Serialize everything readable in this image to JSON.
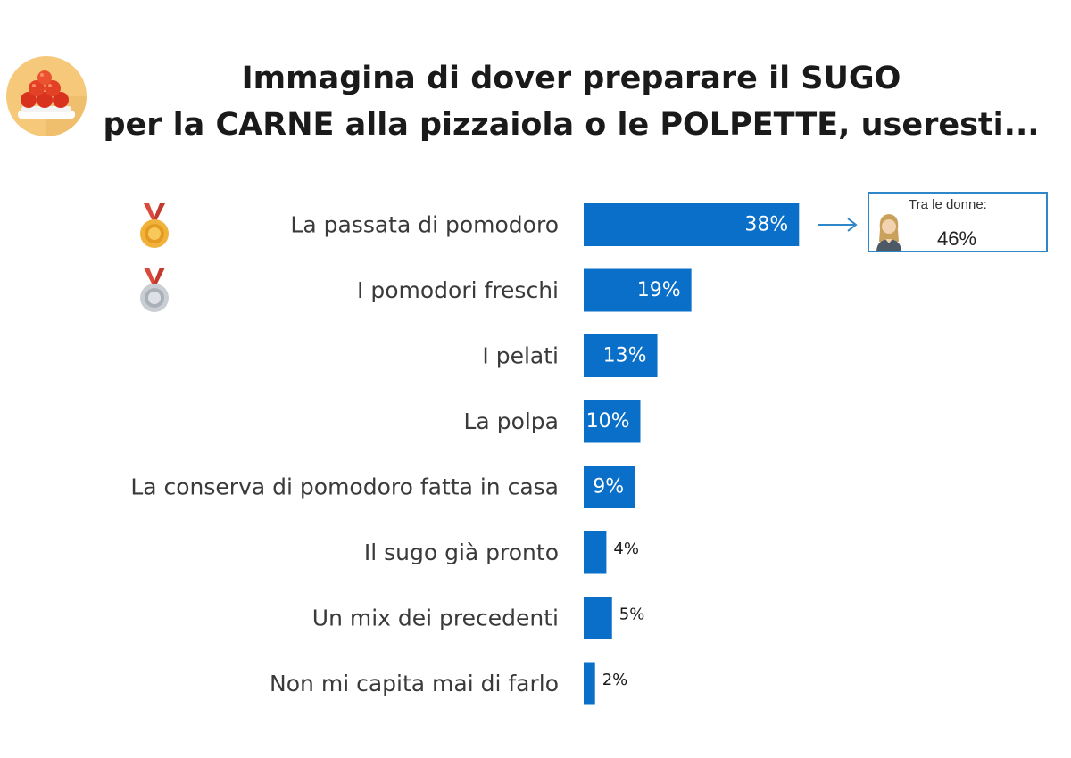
{
  "title_line1": "Immagina di dover preparare il SUGO",
  "title_line2": "per la CARNE alla pizzaiola o le POLPETTE, useresti...",
  "icons": {
    "header": "meatballs-dish-icon",
    "first": "gold-medal-icon",
    "second": "silver-medal-icon",
    "callout": "woman-avatar-icon"
  },
  "colors": {
    "bar": "#0a6fc9",
    "callout_border": "#2f86c9",
    "arrow": "#2f86c9"
  },
  "callout": {
    "title": "Tra le donne:",
    "value": "46%"
  },
  "chart_data": {
    "type": "bar",
    "orientation": "horizontal",
    "title": "Immagina di dover preparare il SUGO per la CARNE alla pizzaiola o le POLPETTE, useresti...",
    "categories": [
      "La passata di pomodoro",
      "I pomodori freschi",
      "I pelati",
      "La polpa",
      "La conserva di pomodoro fatta in casa",
      "Il sugo già pronto",
      "Un mix dei precedenti",
      "Non mi capita mai di farlo"
    ],
    "values": [
      38,
      19,
      13,
      10,
      9,
      4,
      5,
      2
    ],
    "value_labels": [
      "38%",
      "19%",
      "13%",
      "10%",
      "9%",
      "4%",
      "5%",
      "2%"
    ],
    "unit": "%",
    "grid": false,
    "legend": "none"
  }
}
